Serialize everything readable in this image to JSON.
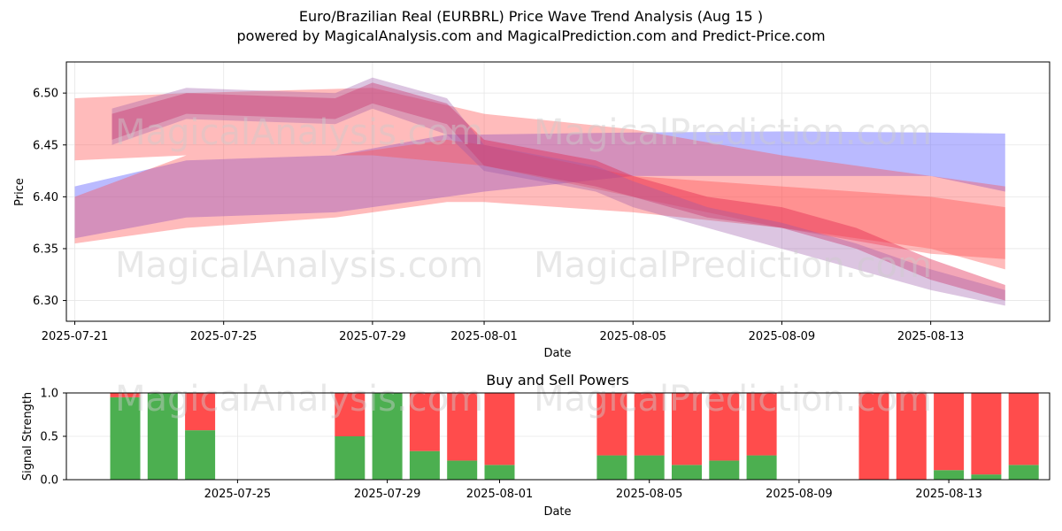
{
  "title_line1": "Euro/Brazilian Real (EURBRL) Price Wave Trend Analysis (Aug 15 )",
  "title_line2": "powered by MagicalAnalysis.com and MagicalPrediction.com and Predict-Price.com",
  "watermarks": [
    "MagicalAnalysis.com",
    "MagicalPrediction.com"
  ],
  "colors": {
    "buy": "#4caf50",
    "sell": "#ff4c4c",
    "blue_band": "#6666ff",
    "red_band": "#ff4d4d",
    "crimson_band": "#e0204a"
  },
  "chart_data": [
    {
      "type": "area",
      "xlabel": "Date",
      "ylabel": "Price",
      "ylim": [
        6.28,
        6.53
      ],
      "yticks": [
        "6.30",
        "6.35",
        "6.40",
        "6.45",
        "6.50"
      ],
      "xticks": [
        "2025-07-21",
        "2025-07-25",
        "2025-07-29",
        "2025-08-01",
        "2025-08-05",
        "2025-08-09",
        "2025-08-13"
      ],
      "grid": true,
      "series": [
        {
          "color": "blue",
          "x": [
            "2025-07-21",
            "2025-07-24",
            "2025-07-28",
            "2025-07-31",
            "2025-08-01",
            "2025-08-05",
            "2025-08-09",
            "2025-08-13",
            "2025-08-15"
          ],
          "low": [
            6.36,
            6.38,
            6.385,
            6.4,
            6.405,
            6.42,
            6.42,
            6.42,
            6.405
          ],
          "high": [
            6.41,
            6.435,
            6.44,
            6.46,
            6.46,
            6.462,
            6.463,
            6.462,
            6.461
          ]
        },
        {
          "color": "red",
          "x": [
            "2025-07-21",
            "2025-07-24",
            "2025-07-28",
            "2025-07-31",
            "2025-08-01",
            "2025-08-05",
            "2025-08-09",
            "2025-08-13",
            "2025-08-15"
          ],
          "low": [
            6.355,
            6.37,
            6.38,
            6.395,
            6.395,
            6.385,
            6.37,
            6.35,
            6.33
          ],
          "high": [
            6.4,
            6.44,
            6.44,
            6.455,
            6.45,
            6.42,
            6.41,
            6.4,
            6.39
          ]
        },
        {
          "color": "red",
          "x": [
            "2025-07-21",
            "2025-07-24",
            "2025-07-29",
            "2025-08-01",
            "2025-08-05",
            "2025-08-09",
            "2025-08-13",
            "2025-08-15"
          ],
          "low": [
            6.435,
            6.44,
            6.44,
            6.43,
            6.4,
            6.37,
            6.345,
            6.34
          ],
          "high": [
            6.495,
            6.5,
            6.505,
            6.48,
            6.465,
            6.44,
            6.42,
            6.41
          ]
        },
        {
          "color": "crimson",
          "x": [
            "2025-07-22",
            "2025-07-24",
            "2025-07-28",
            "2025-07-29",
            "2025-07-31",
            "2025-08-01",
            "2025-08-04",
            "2025-08-05",
            "2025-08-07",
            "2025-08-09",
            "2025-08-11",
            "2025-08-13",
            "2025-08-15"
          ],
          "low": [
            6.455,
            6.48,
            6.475,
            6.49,
            6.47,
            6.43,
            6.41,
            6.4,
            6.38,
            6.37,
            6.35,
            6.32,
            6.3
          ],
          "high": [
            6.48,
            6.5,
            6.495,
            6.51,
            6.49,
            6.455,
            6.435,
            6.42,
            6.4,
            6.39,
            6.37,
            6.34,
            6.315
          ]
        },
        {
          "color": "purple",
          "x": [
            "2025-07-22",
            "2025-07-24",
            "2025-07-28",
            "2025-07-29",
            "2025-07-31",
            "2025-08-01",
            "2025-08-04",
            "2025-08-05",
            "2025-08-07",
            "2025-08-09",
            "2025-08-11",
            "2025-08-13",
            "2025-08-15"
          ],
          "low": [
            6.45,
            6.475,
            6.47,
            6.485,
            6.46,
            6.425,
            6.405,
            6.39,
            6.37,
            6.35,
            6.33,
            6.31,
            6.295
          ],
          "high": [
            6.485,
            6.505,
            6.5,
            6.515,
            6.495,
            6.45,
            6.43,
            6.415,
            6.39,
            6.375,
            6.355,
            6.33,
            6.31
          ]
        }
      ]
    },
    {
      "type": "bar",
      "title": "Buy and Sell Powers",
      "xlabel": "Date",
      "ylabel": "Signal Strength",
      "ylim": [
        0,
        1
      ],
      "yticks": [
        "0.0",
        "0.5",
        "1.0"
      ],
      "xticks": [
        "2025-07-25",
        "2025-07-29",
        "2025-08-01",
        "2025-08-05",
        "2025-08-09",
        "2025-08-13"
      ],
      "categories": [
        "2025-07-22",
        "2025-07-23",
        "2025-07-24",
        "2025-07-28",
        "2025-07-29",
        "2025-07-30",
        "2025-07-31",
        "2025-08-01",
        "2025-08-04",
        "2025-08-05",
        "2025-08-06",
        "2025-08-07",
        "2025-08-08",
        "2025-08-11",
        "2025-08-12",
        "2025-08-13",
        "2025-08-14",
        "2025-08-15"
      ],
      "series": [
        {
          "name": "Buy",
          "values": [
            0.95,
            1.0,
            0.57,
            0.5,
            1.0,
            0.33,
            0.22,
            0.17,
            0.28,
            0.28,
            0.17,
            0.22,
            0.28,
            0.0,
            0.0,
            0.11,
            0.06,
            0.17
          ]
        },
        {
          "name": "Sell",
          "values": [
            0.05,
            0.0,
            0.43,
            0.5,
            0.0,
            0.67,
            0.78,
            0.83,
            0.72,
            0.72,
            0.83,
            0.78,
            0.72,
            1.0,
            1.0,
            0.89,
            0.94,
            0.83
          ]
        }
      ]
    }
  ]
}
